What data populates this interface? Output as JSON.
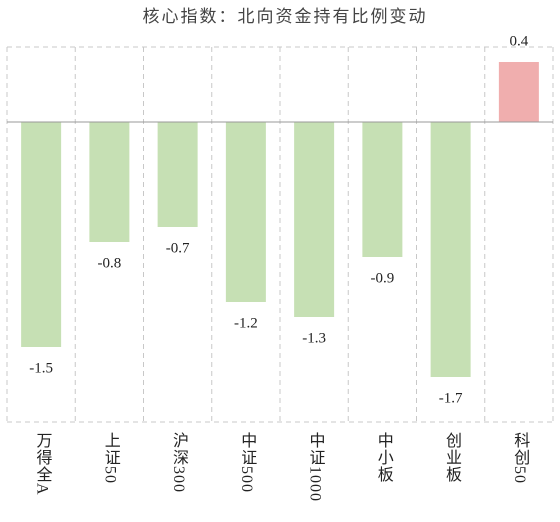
{
  "chart_data": {
    "type": "bar",
    "title": "核心指数：北向资金持有比例变动",
    "categories": [
      "万得全A",
      "上证50",
      "沪深300",
      "中证500",
      "中证1000",
      "中小板",
      "创业板",
      "科创50"
    ],
    "values": [
      -1.5,
      -0.8,
      -0.7,
      -1.2,
      -1.3,
      -0.9,
      -1.7,
      0.4
    ],
    "colors": {
      "negative": "#c6e0b4",
      "positive": "#f0aeae"
    },
    "ylim": [
      -2,
      0.5
    ]
  }
}
